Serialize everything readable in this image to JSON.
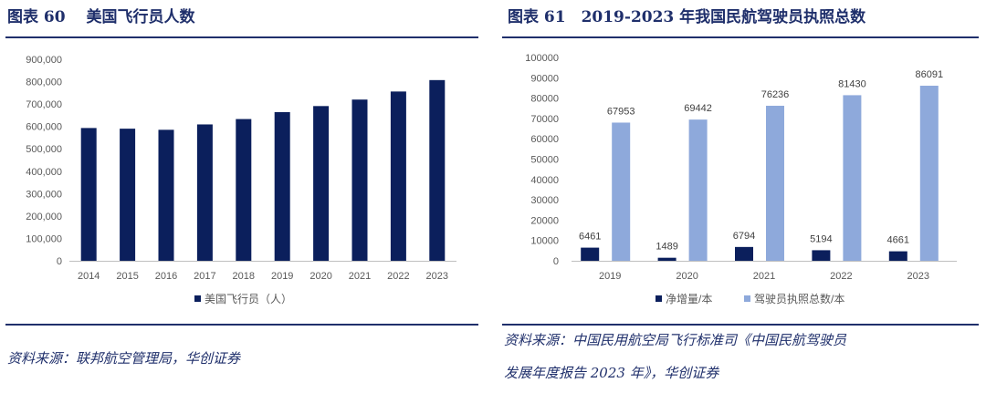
{
  "colors": {
    "title": "#1f2f6b",
    "dark_bar": "#0b1f5c",
    "light_bar": "#8ea9db",
    "axis_text": "#595959",
    "axis_line": "#bfbfbf"
  },
  "left": {
    "title": "图表 60　 美国飞行员人数",
    "source": "资料来源：联邦航空管理局，华创证券"
  },
  "right": {
    "title": "图表 61　2019-2023 年我国民航驾驶员执照总数",
    "source_line1": "资料来源：中国民用航空局飞行标准司《中国民航驾驶员",
    "source_line2": "发展年度报告 2023 年》，华创证券"
  },
  "chart_data": [
    {
      "type": "bar",
      "categories": [
        "2014",
        "2015",
        "2016",
        "2017",
        "2018",
        "2019",
        "2020",
        "2021",
        "2022",
        "2023"
      ],
      "series": [
        {
          "name": "美国飞行员（人）",
          "values": [
            593000,
            590000,
            585000,
            609000,
            633000,
            664000,
            691000,
            720000,
            756000,
            807000
          ]
        }
      ],
      "ylim": [
        0,
        900000
      ],
      "yticks": [
        "0",
        "100,000",
        "200,000",
        "300,000",
        "400,000",
        "500,000",
        "600,000",
        "700,000",
        "800,000",
        "900,000"
      ],
      "grid": false,
      "legend_position": "bottom"
    },
    {
      "type": "bar",
      "categories": [
        "2019",
        "2020",
        "2021",
        "2022",
        "2023"
      ],
      "series": [
        {
          "name": "净增量/本",
          "values": [
            6461,
            1489,
            6794,
            5194,
            4661
          ]
        },
        {
          "name": "驾驶员执照总数/本",
          "values": [
            67953,
            69442,
            76236,
            81430,
            86091
          ]
        }
      ],
      "data_labels": [
        [
          "6461",
          "1489",
          "6794",
          "5194",
          "4661"
        ],
        [
          "67953",
          "69442",
          "76236",
          "81430",
          "86091"
        ]
      ],
      "ylim": [
        0,
        100000
      ],
      "yticks": [
        "0",
        "10000",
        "20000",
        "30000",
        "40000",
        "50000",
        "60000",
        "70000",
        "80000",
        "90000",
        "100000"
      ],
      "grid": false,
      "legend_position": "bottom"
    }
  ]
}
